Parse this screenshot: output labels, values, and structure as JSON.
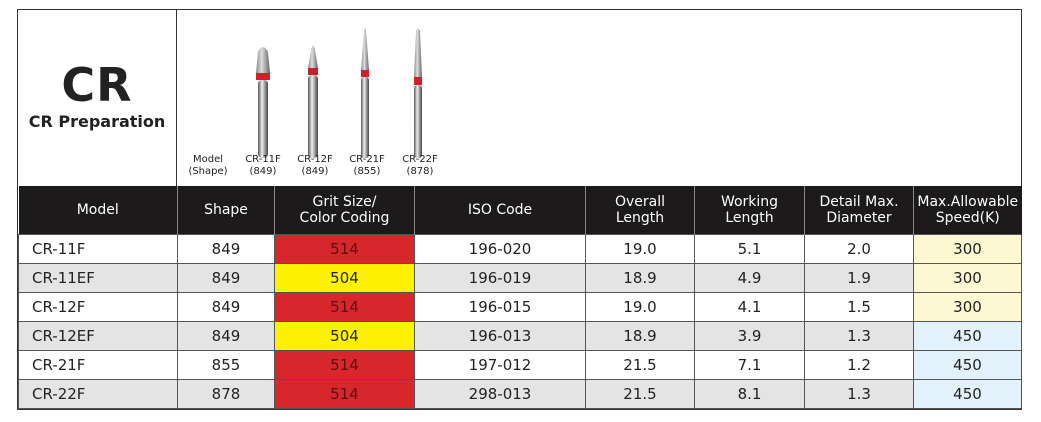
{
  "title": "CR",
  "subtitle": "CR Preparation",
  "bur_header": {
    "l1": "Model",
    "l2": "(Shape)"
  },
  "burs": [
    {
      "model": "CR-11F",
      "shape": "(849)"
    },
    {
      "model": "CR-12F",
      "shape": "(849)"
    },
    {
      "model": "CR-21F",
      "shape": "(855)"
    },
    {
      "model": "CR-22F",
      "shape": "(878)"
    }
  ],
  "columns": [
    "Model",
    "Shape",
    "Grit Size/\nColor Coding",
    "ISO Code",
    "Overall\nLength",
    "Working\nLength",
    "Detail Max.\nDiameter",
    "Max.Allowable\nSpeed(K)"
  ],
  "rows": [
    [
      "CR-11F",
      "849",
      "514",
      "196-020",
      "19.0",
      "5.1",
      "2.0",
      "300"
    ],
    [
      "CR-11EF",
      "849",
      "504",
      "196-019",
      "18.9",
      "4.9",
      "1.9",
      "300"
    ],
    [
      "CR-12F",
      "849",
      "514",
      "196-015",
      "19.0",
      "4.1",
      "1.5",
      "300"
    ],
    [
      "CR-12EF",
      "849",
      "504",
      "196-013",
      "18.9",
      "3.9",
      "1.3",
      "450"
    ],
    [
      "CR-21F",
      "855",
      "514",
      "197-012",
      "21.5",
      "7.1",
      "1.2",
      "450"
    ],
    [
      "CR-22F",
      "878",
      "514",
      "298-013",
      "21.5",
      "8.1",
      "1.3",
      "450"
    ]
  ],
  "colors": {
    "514": "#d7262c",
    "504": "#fff200",
    "300": "#fdf7d2",
    "450": "#e3f1fa"
  }
}
